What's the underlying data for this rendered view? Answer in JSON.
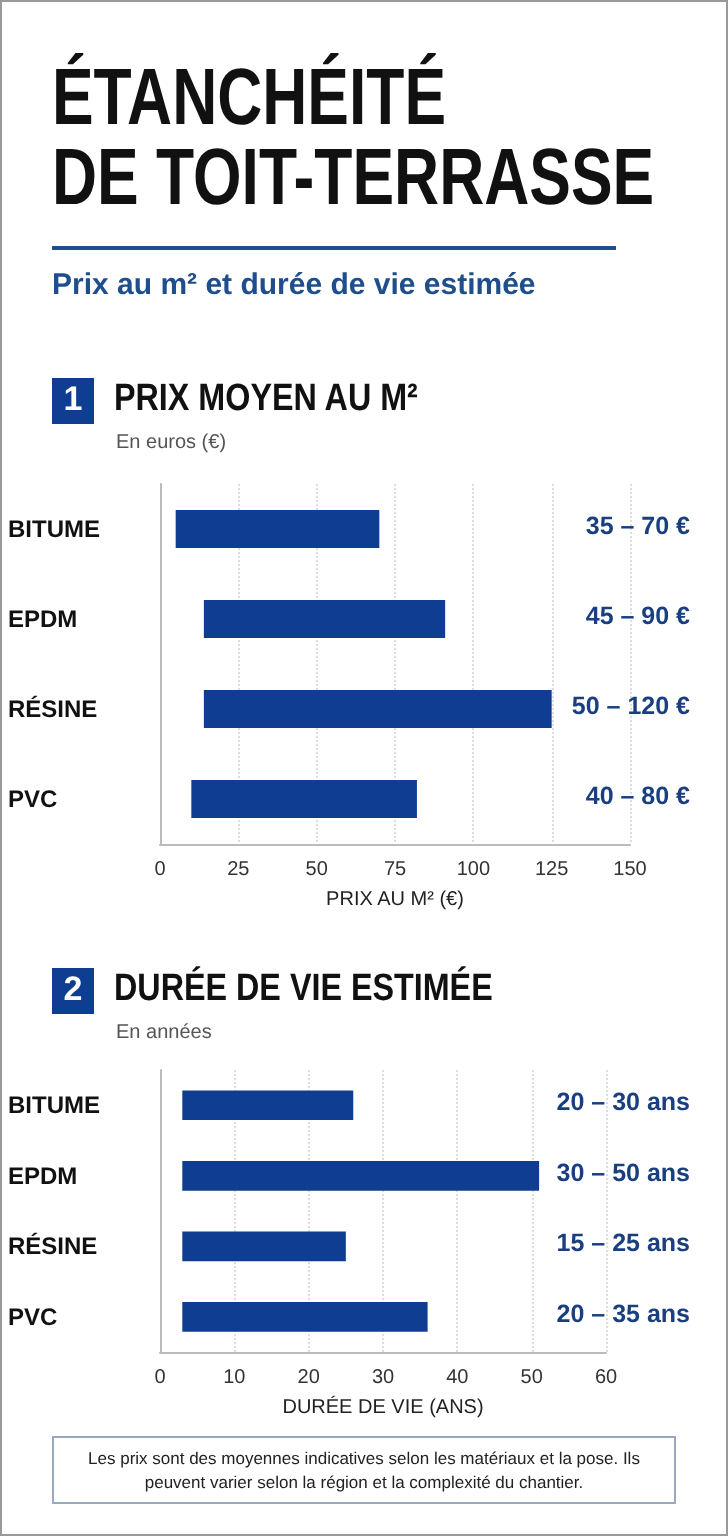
{
  "chart_data": [
    {
      "type": "bar",
      "orientation": "horizontal",
      "title": "1 PRIX MOYEN AU M²",
      "subtitle": "En euros (€)",
      "annotations": [
        "35 – 70 €",
        "45 – 90 €",
        "50 – 120 €",
        "40 – 80 €",
        "ÉTANCHÉITÉ DE TOIT-TERRASSE",
        "Prix au m² et durée de vie estimée"
      ],
      "categories": [
        "BITUME",
        "EPDM",
        "RÉSINE",
        "PVC"
      ],
      "base": [
        5,
        14,
        14,
        10
      ],
      "values": [
        65,
        77,
        111,
        72
      ],
      "color": "#0f3d91",
      "xlabel": "PRIX AU M² (€)",
      "xlim": [
        0,
        150
      ],
      "xticks": [
        0,
        25,
        50,
        75,
        100,
        125,
        150
      ],
      "grid": "x"
    },
    {
      "type": "bar",
      "orientation": "horizontal",
      "title": "2 DURÉE DE VIE ESTIMÉE",
      "subtitle": "En années",
      "annotations": [
        "20 – 30 ans",
        "30 – 50 ans",
        "15 – 25 ans",
        "20 – 35 ans",
        "Les prix sont des moyennes indicatives selon les matériaux et la pose. Ils peuvent varier selon la région et la complexité du chantier."
      ],
      "categories": [
        "BITUME",
        "EPDM",
        "RÉSINE",
        "PVC"
      ],
      "base": [
        3,
        3,
        3,
        3
      ],
      "values": [
        23,
        48,
        22,
        33
      ],
      "color": "#0f3d91",
      "xlabel": "DURÉE DE VIE (ANS)",
      "xlim": [
        0,
        60
      ],
      "xticks": [
        0,
        10,
        20,
        30,
        40,
        50,
        60
      ],
      "grid": "x"
    }
  ]
}
